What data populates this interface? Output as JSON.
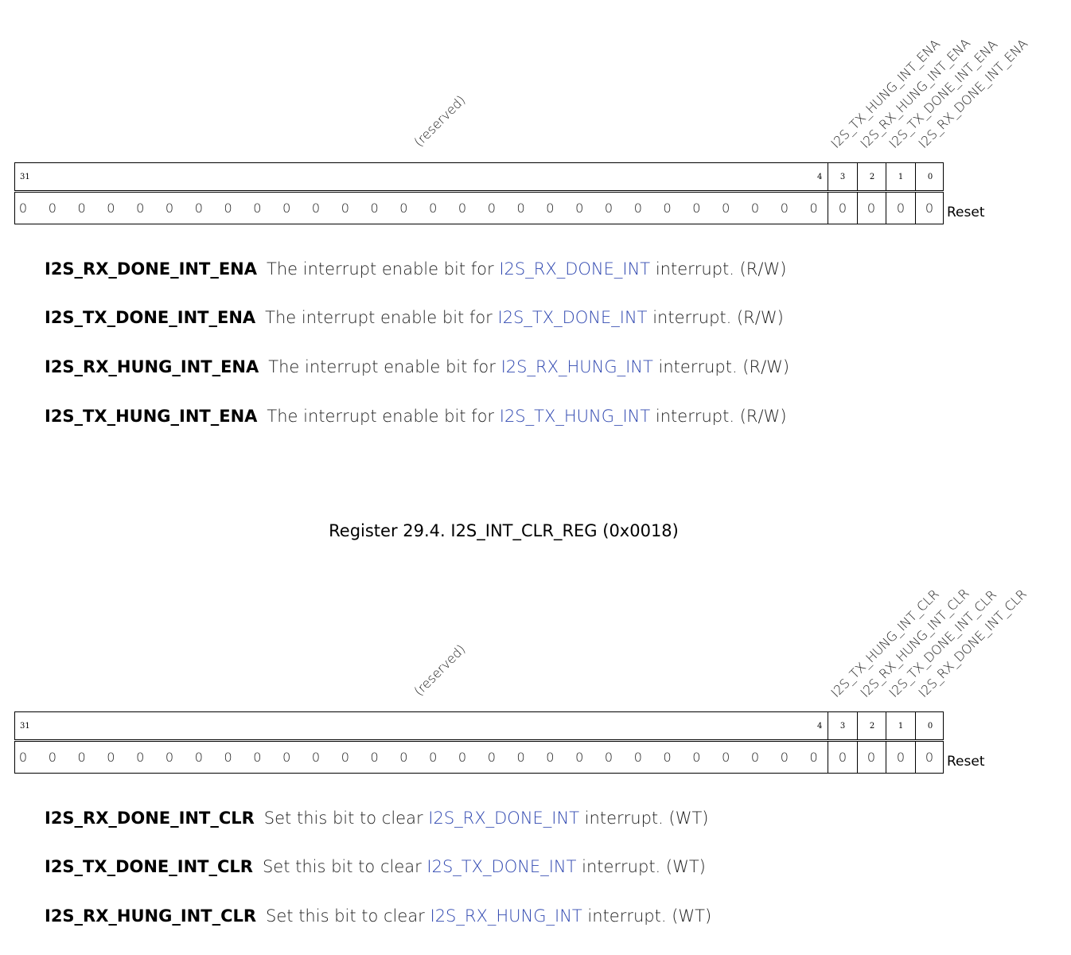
{
  "reg1": {
    "reserved_label": "(reserved)",
    "field_labels": [
      "I2S_TX_HUNG_INT_ENA",
      "I2S_RX_HUNG_INT_ENA",
      "I2S_TX_DONE_INT_ENA",
      "I2S_RX_DONE_INT_ENA"
    ],
    "bits": {
      "msb": "31",
      "lsb_reserved": "4",
      "b3": "3",
      "b2": "2",
      "b1": "1",
      "b0": "0"
    },
    "reset_label": "Reset",
    "descriptions": [
      {
        "name": "I2S_RX_DONE_INT_ENA",
        "pre": "The interrupt enable bit for ",
        "link": "I2S_RX_DONE_INT",
        "post": " interrupt.  (R/W)"
      },
      {
        "name": "I2S_TX_DONE_INT_ENA",
        "pre": "The interrupt enable bit for ",
        "link": "I2S_TX_DONE_INT",
        "post": " interrupt.  (R/W)"
      },
      {
        "name": "I2S_RX_HUNG_INT_ENA",
        "pre": "The interrupt enable bit for ",
        "link": "I2S_RX_HUNG_INT",
        "post": " interrupt.  (R/W)"
      },
      {
        "name": "I2S_TX_HUNG_INT_ENA",
        "pre": "The interrupt enable bit for ",
        "link": "I2S_TX_HUNG_INT",
        "post": " interrupt.  (R/W)"
      }
    ]
  },
  "reg2_title": "Register 29.4. I2S_INT_CLR_REG (0x0018)",
  "reg2": {
    "reserved_label": "(reserved)",
    "field_labels": [
      "I2S_TX_HUNG_INT_CLR",
      "I2S_RX_HUNG_INT_CLR",
      "I2S_TX_DONE_INT_CLR",
      "I2S_RX_DONE_INT_CLR"
    ],
    "bits": {
      "msb": "31",
      "lsb_reserved": "4",
      "b3": "3",
      "b2": "2",
      "b1": "1",
      "b0": "0"
    },
    "reset_label": "Reset",
    "descriptions": [
      {
        "name": "I2S_RX_DONE_INT_CLR",
        "pre": "Set this bit to clear ",
        "link": "I2S_RX_DONE_INT",
        "post": " interrupt.  (WT)"
      },
      {
        "name": "I2S_TX_DONE_INT_CLR",
        "pre": "Set this bit to clear ",
        "link": "I2S_TX_DONE_INT",
        "post": " interrupt.  (WT)"
      },
      {
        "name": "I2S_RX_HUNG_INT_CLR",
        "pre": "Set this bit to clear ",
        "link": "I2S_RX_HUNG_INT",
        "post": " interrupt.  (WT)"
      }
    ]
  },
  "reset_value": "0"
}
